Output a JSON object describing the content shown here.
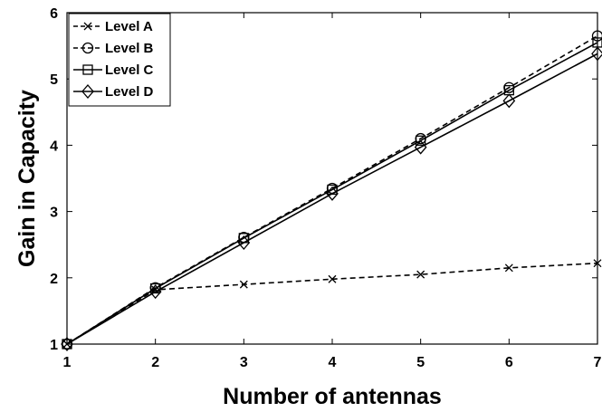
{
  "chart_data": {
    "type": "line",
    "xlabel": "Number of antennas",
    "ylabel": "Gain in Capacity",
    "xlim": [
      1,
      7
    ],
    "ylim": [
      1,
      6
    ],
    "xticks": [
      "1",
      "2",
      "3",
      "4",
      "5",
      "6",
      "7"
    ],
    "yticks": [
      "1",
      "2",
      "3",
      "4",
      "5",
      "6"
    ],
    "grid": false,
    "legend_position": "top-left",
    "x": [
      1,
      2,
      3,
      4,
      5,
      6,
      7
    ],
    "series": [
      {
        "name": "Level A",
        "marker": "x",
        "dash": "dashed",
        "values": [
          1.0,
          1.82,
          1.9,
          1.98,
          2.05,
          2.15,
          2.22
        ]
      },
      {
        "name": "Level B",
        "marker": "circle",
        "dash": "dashed",
        "values": [
          1.0,
          1.85,
          2.61,
          3.35,
          4.1,
          4.87,
          5.65
        ]
      },
      {
        "name": "Level C",
        "marker": "square",
        "dash": "solid",
        "values": [
          1.0,
          1.84,
          2.6,
          3.33,
          4.07,
          4.83,
          5.55
        ]
      },
      {
        "name": "Level D",
        "marker": "diamond",
        "dash": "solid",
        "values": [
          1.0,
          1.79,
          2.53,
          3.27,
          3.97,
          4.67,
          5.38
        ]
      }
    ]
  }
}
